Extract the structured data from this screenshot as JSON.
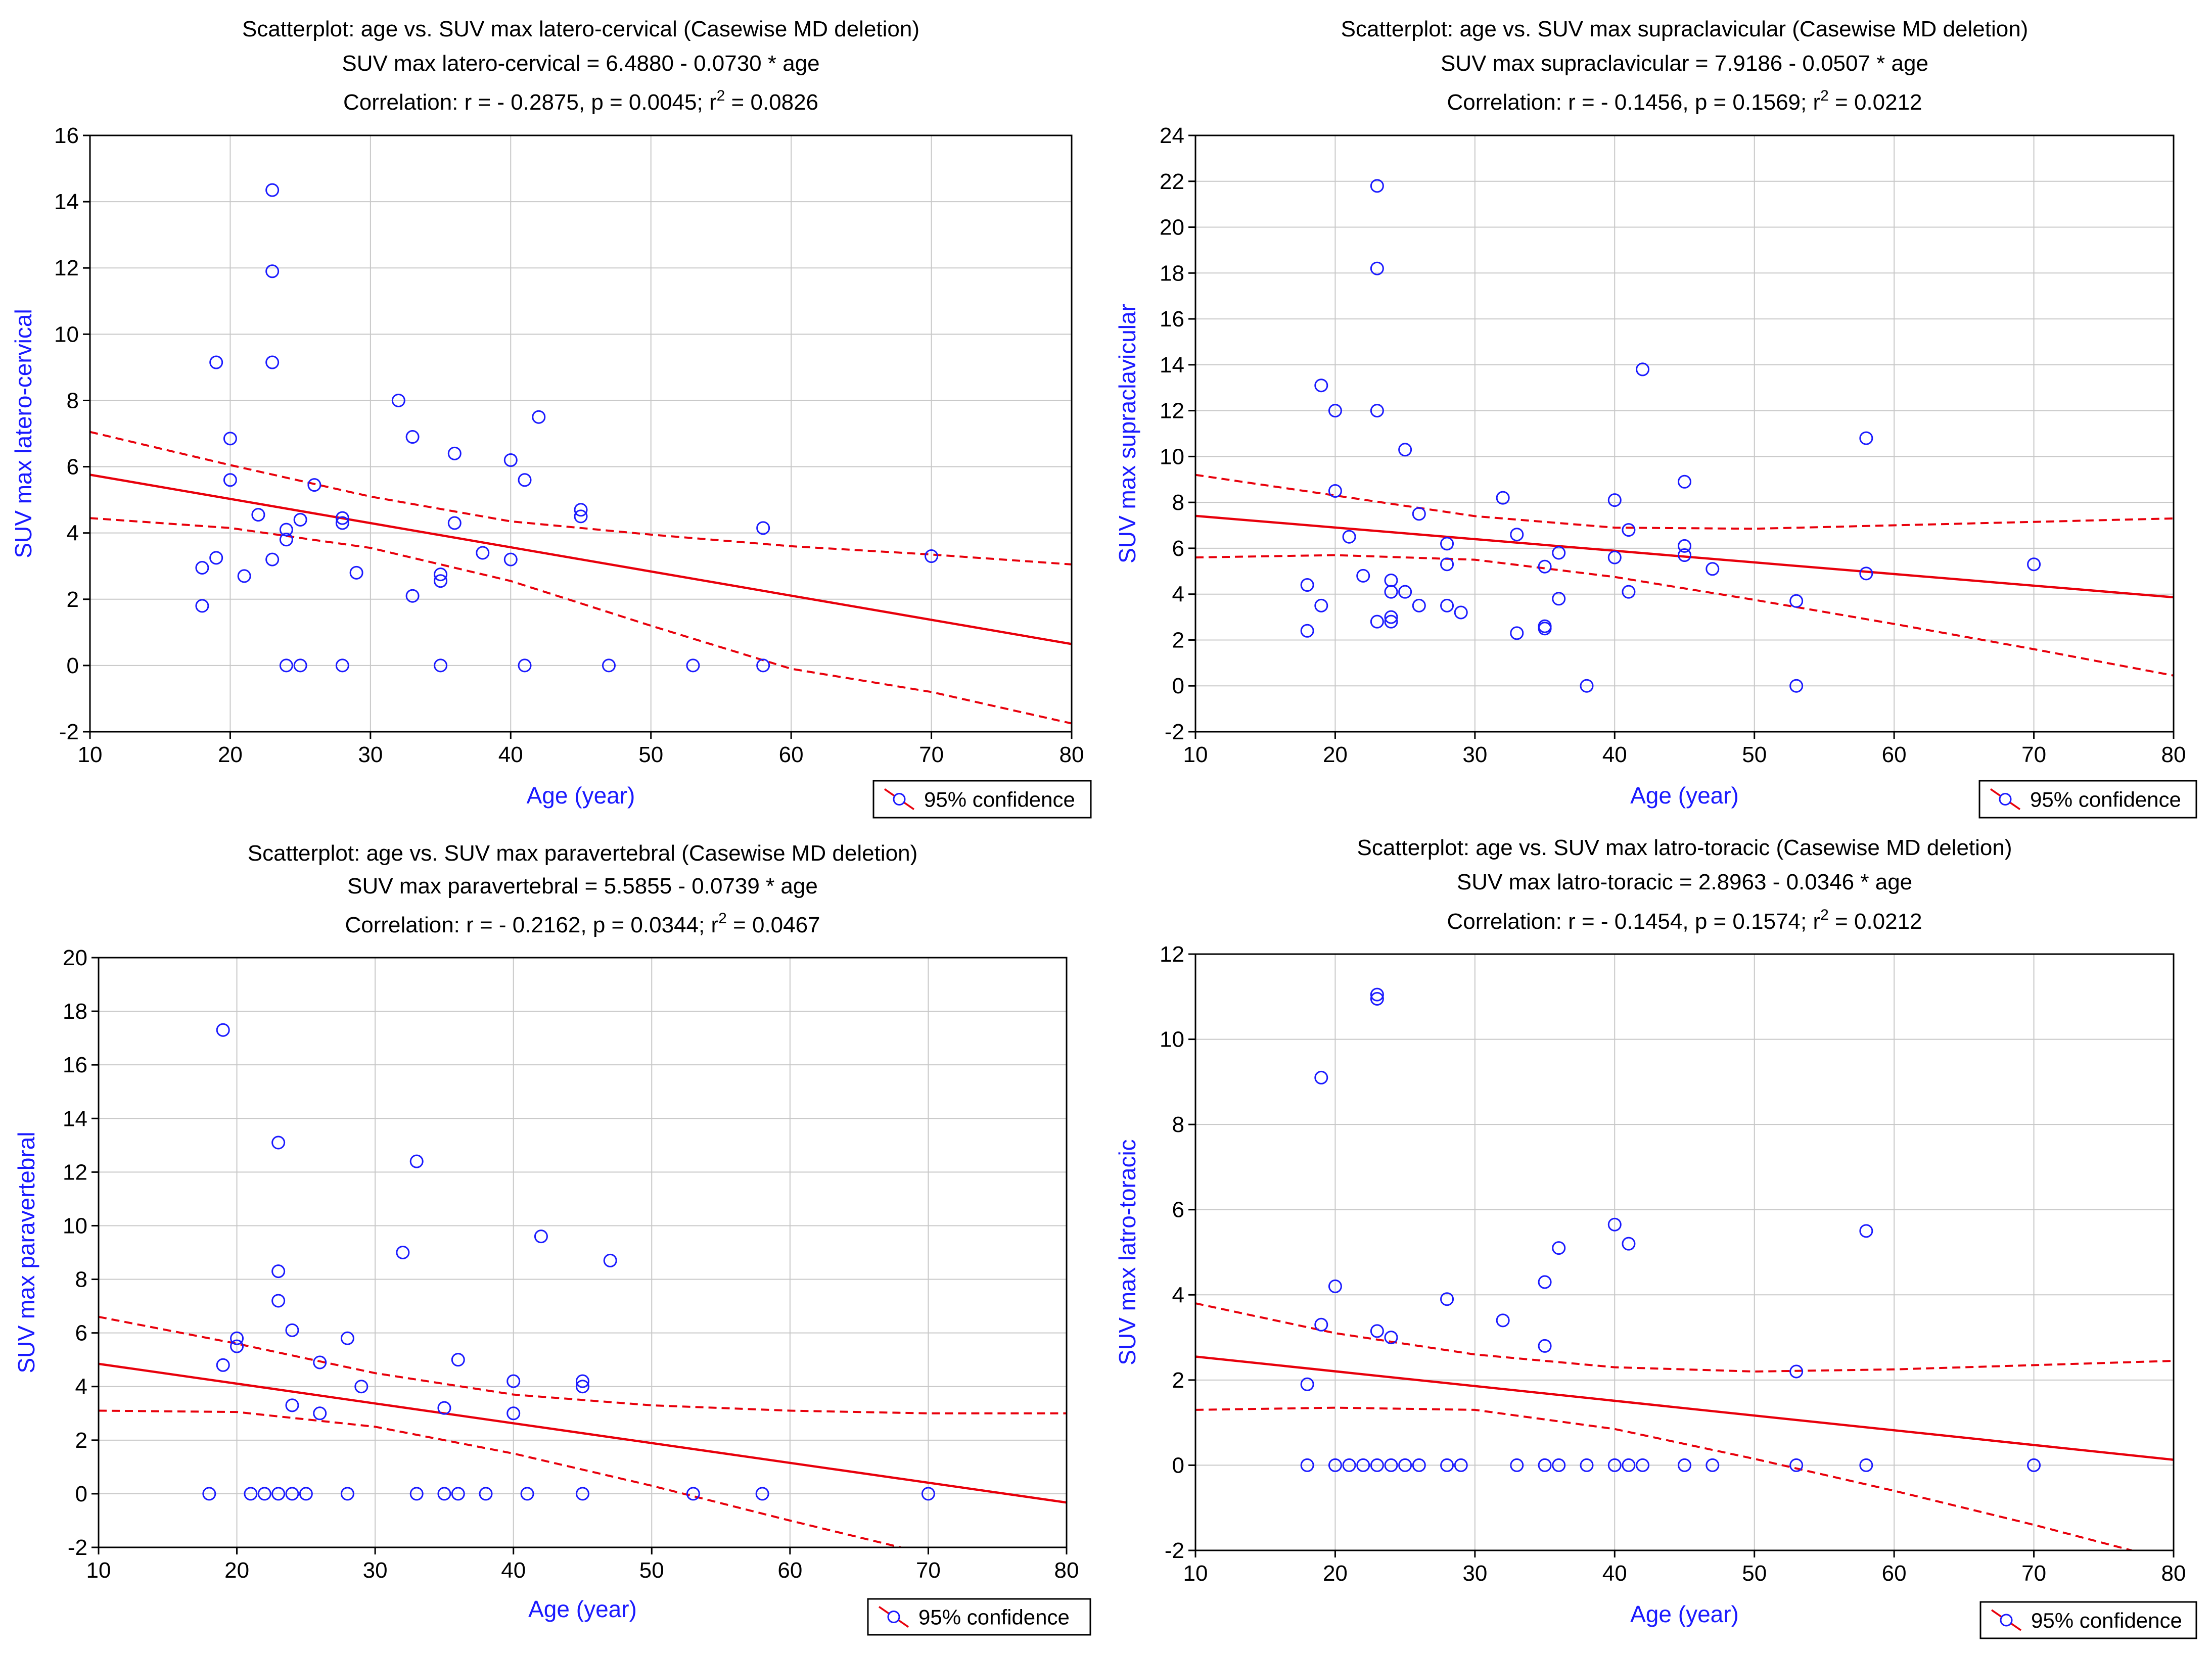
{
  "chart_data": [
    {
      "type": "scatter",
      "title": "Scatterplot: age vs. SUV max latero-cervical (Casewise MD deletion)",
      "equation": "SUV max latero-cervical = 6.4880 - 0.0730  * age",
      "correlation_prefix": "Correlation: r = - 0.2875, p = 0.0045; r",
      "correlation_exp": "2",
      "correlation_suffix": " = 0.0826",
      "xlabel": "Age (year)",
      "ylabel": "SUV max latero-cervical",
      "legend": "95% confidence",
      "legend_position": "bottom-right",
      "xlim": [
        10,
        80
      ],
      "ylim": [
        -2,
        16
      ],
      "xticks": [
        10,
        20,
        30,
        40,
        50,
        60,
        70,
        80
      ],
      "yticks": [
        -2,
        0,
        2,
        4,
        6,
        8,
        10,
        12,
        14,
        16
      ],
      "grid": true,
      "regression": {
        "intercept": 6.488,
        "slope": -0.073
      },
      "ci_upper": [
        [
          10,
          7.05
        ],
        [
          20,
          6.05
        ],
        [
          30,
          5.1
        ],
        [
          40,
          4.35
        ],
        [
          50,
          3.95
        ],
        [
          60,
          3.6
        ],
        [
          70,
          3.35
        ],
        [
          80,
          3.05
        ]
      ],
      "ci_lower": [
        [
          10,
          4.45
        ],
        [
          20,
          4.15
        ],
        [
          30,
          3.55
        ],
        [
          40,
          2.55
        ],
        [
          50,
          1.2
        ],
        [
          60,
          -0.1
        ],
        [
          70,
          -0.8
        ],
        [
          80,
          -1.75
        ]
      ],
      "points": [
        [
          18,
          1.8
        ],
        [
          18,
          2.95
        ],
        [
          19,
          3.25
        ],
        [
          19,
          9.15
        ],
        [
          20,
          6.85
        ],
        [
          20,
          5.6
        ],
        [
          21,
          2.7
        ],
        [
          22,
          4.55
        ],
        [
          23,
          14.35
        ],
        [
          23,
          11.9
        ],
        [
          23,
          9.15
        ],
        [
          23,
          3.2
        ],
        [
          24,
          4.1
        ],
        [
          24,
          3.8
        ],
        [
          24,
          0
        ],
        [
          25,
          4.4
        ],
        [
          25,
          0
        ],
        [
          26,
          5.45
        ],
        [
          28,
          4.45
        ],
        [
          28,
          4.3
        ],
        [
          28,
          0
        ],
        [
          29,
          2.8
        ],
        [
          32,
          8.0
        ],
        [
          33,
          6.9
        ],
        [
          33,
          2.1
        ],
        [
          35,
          2.75
        ],
        [
          35,
          2.55
        ],
        [
          35,
          0
        ],
        [
          36,
          6.4
        ],
        [
          36,
          4.3
        ],
        [
          38,
          3.4
        ],
        [
          40,
          6.2
        ],
        [
          40,
          3.2
        ],
        [
          41,
          5.6
        ],
        [
          41,
          0
        ],
        [
          42,
          7.5
        ],
        [
          45,
          4.7
        ],
        [
          45,
          4.5
        ],
        [
          47,
          0
        ],
        [
          53,
          0
        ],
        [
          58,
          4.15
        ],
        [
          58,
          0
        ],
        [
          70,
          3.3
        ]
      ]
    },
    {
      "type": "scatter",
      "title": "Scatterplot: age vs. SUV max supraclavicular (Casewise MD deletion)",
      "equation": "SUV max supraclavicular = 7.9186 - 0.0507  * age",
      "correlation_prefix": "Correlation: r = - 0.1456, p = 0.1569; r",
      "correlation_exp": "2",
      "correlation_suffix": " = 0.0212",
      "xlabel": "Age (year)",
      "ylabel": "SUV max supraclavicular",
      "legend": "95% confidence",
      "legend_position": "bottom-right",
      "xlim": [
        10,
        80
      ],
      "ylim": [
        -2,
        24
      ],
      "xticks": [
        10,
        20,
        30,
        40,
        50,
        60,
        70,
        80
      ],
      "yticks": [
        -2,
        0,
        2,
        4,
        6,
        8,
        10,
        12,
        14,
        16,
        18,
        20,
        22,
        24
      ],
      "grid": true,
      "regression": {
        "intercept": 7.9186,
        "slope": -0.0507
      },
      "ci_upper": [
        [
          10,
          9.2
        ],
        [
          20,
          8.3
        ],
        [
          30,
          7.4
        ],
        [
          40,
          6.9
        ],
        [
          50,
          6.85
        ],
        [
          60,
          7.0
        ],
        [
          70,
          7.15
        ],
        [
          80,
          7.3
        ]
      ],
      "ci_lower": [
        [
          10,
          5.6
        ],
        [
          20,
          5.7
        ],
        [
          30,
          5.5
        ],
        [
          40,
          4.75
        ],
        [
          50,
          3.75
        ],
        [
          60,
          2.7
        ],
        [
          70,
          1.6
        ],
        [
          80,
          0.45
        ]
      ],
      "points": [
        [
          18,
          4.4
        ],
        [
          18,
          2.4
        ],
        [
          19,
          13.1
        ],
        [
          19,
          3.5
        ],
        [
          20,
          12.0
        ],
        [
          20,
          8.5
        ],
        [
          21,
          6.5
        ],
        [
          22,
          4.8
        ],
        [
          23,
          21.8
        ],
        [
          23,
          18.2
        ],
        [
          23,
          12.0
        ],
        [
          23,
          2.8
        ],
        [
          24,
          4.6
        ],
        [
          24,
          4.1
        ],
        [
          24,
          3.0
        ],
        [
          24,
          2.8
        ],
        [
          25,
          10.3
        ],
        [
          25,
          4.1
        ],
        [
          26,
          7.5
        ],
        [
          26,
          3.5
        ],
        [
          28,
          6.2
        ],
        [
          28,
          5.3
        ],
        [
          28,
          3.5
        ],
        [
          29,
          3.2
        ],
        [
          32,
          8.2
        ],
        [
          33,
          6.6
        ],
        [
          33,
          2.3
        ],
        [
          35,
          5.2
        ],
        [
          35,
          2.6
        ],
        [
          35,
          2.5
        ],
        [
          36,
          5.8
        ],
        [
          36,
          3.8
        ],
        [
          38,
          0
        ],
        [
          40,
          8.1
        ],
        [
          40,
          5.6
        ],
        [
          41,
          6.8
        ],
        [
          41,
          4.1
        ],
        [
          42,
          13.8
        ],
        [
          45,
          8.9
        ],
        [
          45,
          6.1
        ],
        [
          45,
          5.7
        ],
        [
          47,
          5.1
        ],
        [
          53,
          3.7
        ],
        [
          53,
          0
        ],
        [
          58,
          10.8
        ],
        [
          58,
          4.9
        ],
        [
          70,
          5.3
        ]
      ]
    },
    {
      "type": "scatter",
      "title": "Scatterplot: age vs. SUV max paravertebral (Casewise MD deletion)",
      "equation": "SUV max paravertebral = 5.5855 - 0.0739  * age",
      "correlation_prefix": "Correlation: r = - 0.2162, p = 0.0344; r",
      "correlation_exp": "2",
      "correlation_suffix": " = 0.0467",
      "xlabel": "Age (year)",
      "ylabel": "SUV max paravertebral",
      "legend": "95% confidence",
      "legend_position": "bottom-right",
      "xlim": [
        10,
        80
      ],
      "ylim": [
        -2,
        20
      ],
      "xticks": [
        10,
        20,
        30,
        40,
        50,
        60,
        70,
        80
      ],
      "yticks": [
        -2,
        0,
        2,
        4,
        6,
        8,
        10,
        12,
        14,
        16,
        18,
        20
      ],
      "grid": true,
      "regression": {
        "intercept": 5.5855,
        "slope": -0.0739
      },
      "ci_upper": [
        [
          10,
          6.6
        ],
        [
          20,
          5.6
        ],
        [
          30,
          4.5
        ],
        [
          40,
          3.7
        ],
        [
          50,
          3.3
        ],
        [
          60,
          3.1
        ],
        [
          70,
          3.0
        ],
        [
          80,
          3.0
        ]
      ],
      "ci_lower": [
        [
          10,
          3.1
        ],
        [
          20,
          3.05
        ],
        [
          30,
          2.5
        ],
        [
          40,
          1.5
        ],
        [
          50,
          0.3
        ],
        [
          60,
          -1.0
        ],
        [
          68,
          -2.0
        ]
      ],
      "points": [
        [
          18,
          0
        ],
        [
          19,
          17.3
        ],
        [
          19,
          4.8
        ],
        [
          20,
          5.8
        ],
        [
          20,
          5.5
        ],
        [
          21,
          0
        ],
        [
          22,
          0
        ],
        [
          23,
          13.1
        ],
        [
          23,
          8.3
        ],
        [
          23,
          7.2
        ],
        [
          23,
          0
        ],
        [
          24,
          6.1
        ],
        [
          24,
          3.3
        ],
        [
          24,
          0
        ],
        [
          25,
          0
        ],
        [
          26,
          4.9
        ],
        [
          26,
          3.0
        ],
        [
          28,
          5.8
        ],
        [
          28,
          0
        ],
        [
          29,
          4.0
        ],
        [
          32,
          9.0
        ],
        [
          33,
          12.4
        ],
        [
          33,
          0
        ],
        [
          35,
          3.2
        ],
        [
          35,
          0
        ],
        [
          36,
          5.0
        ],
        [
          36,
          0
        ],
        [
          38,
          0
        ],
        [
          40,
          4.2
        ],
        [
          40,
          3.0
        ],
        [
          41,
          0
        ],
        [
          42,
          9.6
        ],
        [
          45,
          4.2
        ],
        [
          45,
          4.0
        ],
        [
          45,
          0
        ],
        [
          47,
          8.7
        ],
        [
          53,
          0
        ],
        [
          58,
          0
        ],
        [
          70,
          0
        ]
      ]
    },
    {
      "type": "scatter",
      "title": "Scatterplot: age vs. SUV max latro-toracic (Casewise MD deletion)",
      "equation": "SUV max latro-toracic = 2.8963 - 0.0346  * age",
      "correlation_prefix": "Correlation: r = - 0.1454, p = 0.1574; r",
      "correlation_exp": "2",
      "correlation_suffix": " = 0.0212",
      "xlabel": "Age (year)",
      "ylabel": "SUV max latro-toracic",
      "legend": "95% confidence",
      "legend_position": "bottom-right",
      "xlim": [
        10,
        80
      ],
      "ylim": [
        -2,
        12
      ],
      "xticks": [
        10,
        20,
        30,
        40,
        50,
        60,
        70,
        80
      ],
      "yticks": [
        -2,
        0,
        2,
        4,
        6,
        8,
        10,
        12
      ],
      "grid": true,
      "regression": {
        "intercept": 2.8963,
        "slope": -0.0346
      },
      "ci_upper": [
        [
          10,
          3.8
        ],
        [
          20,
          3.1
        ],
        [
          30,
          2.6
        ],
        [
          40,
          2.3
        ],
        [
          50,
          2.2
        ],
        [
          60,
          2.25
        ],
        [
          70,
          2.35
        ],
        [
          80,
          2.45
        ]
      ],
      "ci_lower": [
        [
          10,
          1.3
        ],
        [
          20,
          1.35
        ],
        [
          30,
          1.3
        ],
        [
          40,
          0.85
        ],
        [
          50,
          0.15
        ],
        [
          60,
          -0.6
        ],
        [
          70,
          -1.4
        ],
        [
          77,
          -2.0
        ]
      ],
      "points": [
        [
          18,
          1.9
        ],
        [
          18,
          0
        ],
        [
          19,
          9.1
        ],
        [
          19,
          3.3
        ],
        [
          20,
          4.2
        ],
        [
          20,
          0
        ],
        [
          21,
          0
        ],
        [
          22,
          0
        ],
        [
          23,
          11.05
        ],
        [
          23,
          10.95
        ],
        [
          23,
          3.15
        ],
        [
          23,
          0
        ],
        [
          24,
          3.0
        ],
        [
          24,
          0
        ],
        [
          25,
          0
        ],
        [
          26,
          0
        ],
        [
          28,
          3.9
        ],
        [
          28,
          0
        ],
        [
          29,
          0
        ],
        [
          32,
          3.4
        ],
        [
          33,
          0
        ],
        [
          35,
          4.3
        ],
        [
          35,
          2.8
        ],
        [
          35,
          0
        ],
        [
          36,
          5.1
        ],
        [
          36,
          0
        ],
        [
          38,
          0
        ],
        [
          40,
          5.65
        ],
        [
          40,
          0
        ],
        [
          41,
          5.2
        ],
        [
          41,
          0
        ],
        [
          42,
          0
        ],
        [
          45,
          0
        ],
        [
          47,
          0
        ],
        [
          53,
          2.2
        ],
        [
          53,
          0
        ],
        [
          58,
          5.5
        ],
        [
          58,
          0
        ],
        [
          70,
          0
        ]
      ]
    }
  ]
}
